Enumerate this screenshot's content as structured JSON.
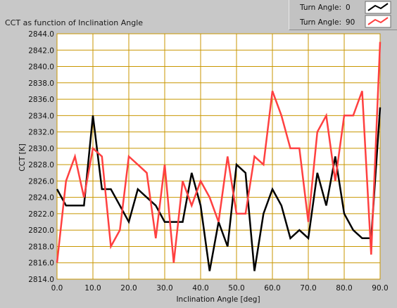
{
  "title": "CCT as function of Inclination Angle",
  "legend": [
    {
      "label": "Turn Angle:",
      "value": "0",
      "color": "#000000"
    },
    {
      "label": "Turn Angle:",
      "value": "90",
      "color": "#ff4040"
    }
  ],
  "chart_data": {
    "type": "line",
    "xlabel": "Inclination Angle [deg]",
    "ylabel": "CCT [K]",
    "xlim": [
      0,
      90
    ],
    "ylim": [
      2814,
      2844
    ],
    "xticks": [
      "0.0",
      "10.0",
      "20.0",
      "30.0",
      "40.0",
      "50.0",
      "60.0",
      "70.0",
      "80.0",
      "90.0"
    ],
    "yticks": [
      "2814.0",
      "2816.0",
      "2818.0",
      "2820.0",
      "2822.0",
      "2824.0",
      "2826.0",
      "2828.0",
      "2830.0",
      "2832.0",
      "2834.0",
      "2836.0",
      "2838.0",
      "2840.0",
      "2842.0",
      "2844.0"
    ],
    "grid": true,
    "background": "#ffffff",
    "grid_color": "#c89600",
    "series": [
      {
        "name": "Turn Angle: 0",
        "color": "#000000",
        "x": [
          0,
          2.5,
          5,
          7.5,
          10,
          12.5,
          15,
          17.5,
          20,
          22.5,
          25,
          27.5,
          30,
          32.5,
          35,
          37.5,
          40,
          42.5,
          45,
          47.5,
          50,
          52.5,
          55,
          57.5,
          60,
          62.5,
          65,
          67.5,
          70,
          72.5,
          75,
          77.5,
          80,
          82.5,
          85,
          87.5,
          90
        ],
        "y": [
          2825,
          2823,
          2823,
          2823,
          2834,
          2825,
          2825,
          2823,
          2821,
          2825,
          2824,
          2823,
          2821,
          2821,
          2821,
          2827,
          2823,
          2815,
          2821,
          2818,
          2828,
          2827,
          2815,
          2822,
          2825,
          2823,
          2819,
          2820,
          2819,
          2827,
          2823,
          2829,
          2822,
          2820,
          2819,
          2819,
          2835
        ]
      },
      {
        "name": "Turn Angle: 90",
        "color": "#ff4040",
        "x": [
          0,
          2.5,
          5,
          7.5,
          10,
          12.5,
          15,
          17.5,
          20,
          22.5,
          25,
          27.5,
          30,
          32.5,
          35,
          37.5,
          40,
          42.5,
          45,
          47.5,
          50,
          52.5,
          55,
          57.5,
          60,
          62.5,
          65,
          67.5,
          70,
          72.5,
          75,
          77.5,
          80,
          82.5,
          85,
          87.5,
          90
        ],
        "y": [
          2816,
          2826,
          2829,
          2824,
          2830,
          2829,
          2818,
          2820,
          2829,
          2828,
          2827,
          2819,
          2828,
          2816,
          2826,
          2823,
          2826,
          2824,
          2821,
          2829,
          2822,
          2822,
          2829,
          2828,
          2837,
          2834,
          2830,
          2830,
          2821,
          2832,
          2834,
          2826,
          2834,
          2834,
          2837,
          2817,
          2843
        ]
      }
    ]
  }
}
